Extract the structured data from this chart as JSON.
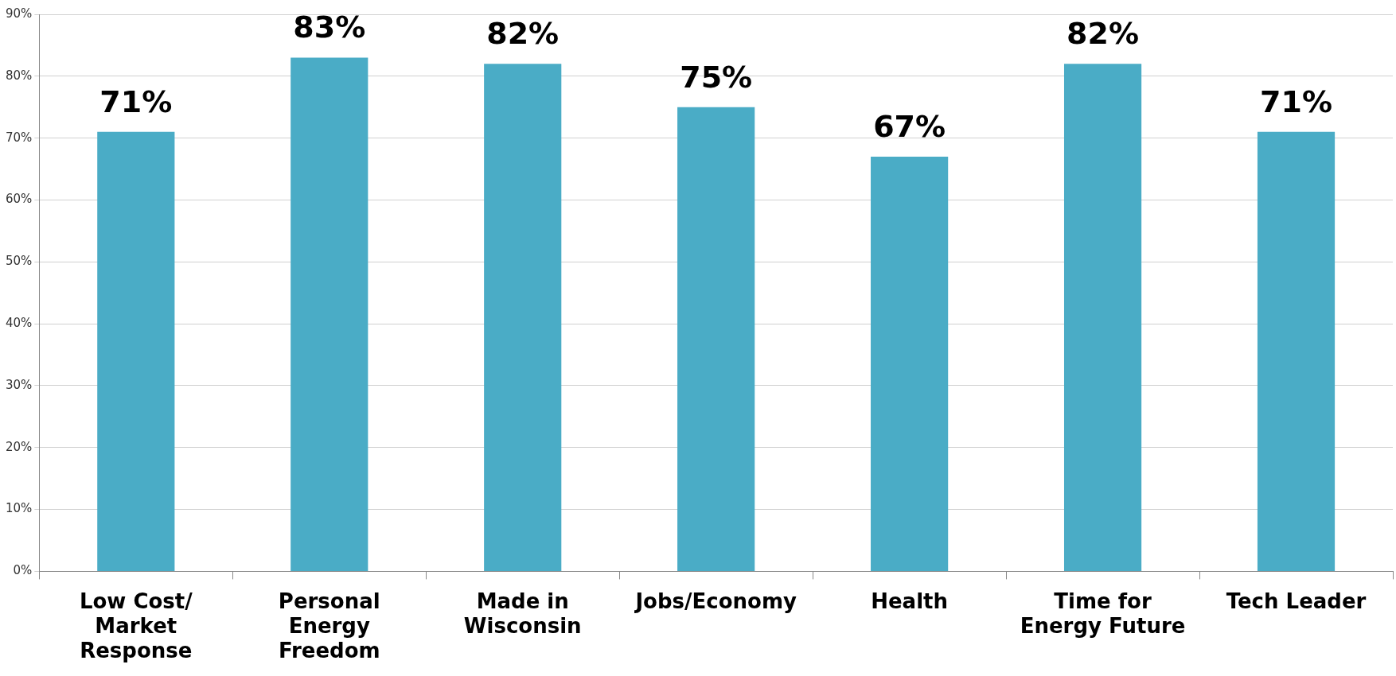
{
  "chart_data": {
    "type": "bar",
    "categories": [
      "Low Cost/ Market Response",
      "Personal Energy Freedom",
      "Made in Wisconsin",
      "Jobs/Economy",
      "Health",
      "Time for Energy Future",
      "Tech Leader"
    ],
    "values": [
      71,
      83,
      82,
      75,
      67,
      82,
      71
    ],
    "value_labels": [
      "71%",
      "83%",
      "82%",
      "75%",
      "67%",
      "82%",
      "71%"
    ],
    "color": "#4aacc6",
    "ylim": [
      0,
      90
    ],
    "yticks": [
      {
        "value": 0,
        "label": "0%"
      },
      {
        "value": 10,
        "label": "10%"
      },
      {
        "value": 20,
        "label": "20%"
      },
      {
        "value": 30,
        "label": "30%"
      },
      {
        "value": 40,
        "label": "40%"
      },
      {
        "value": 50,
        "label": "50%"
      },
      {
        "value": 60,
        "label": "60%"
      },
      {
        "value": 70,
        "label": "70%"
      },
      {
        "value": 80,
        "label": "80%"
      },
      {
        "value": 90,
        "label": "90%"
      }
    ],
    "grid": "y"
  }
}
